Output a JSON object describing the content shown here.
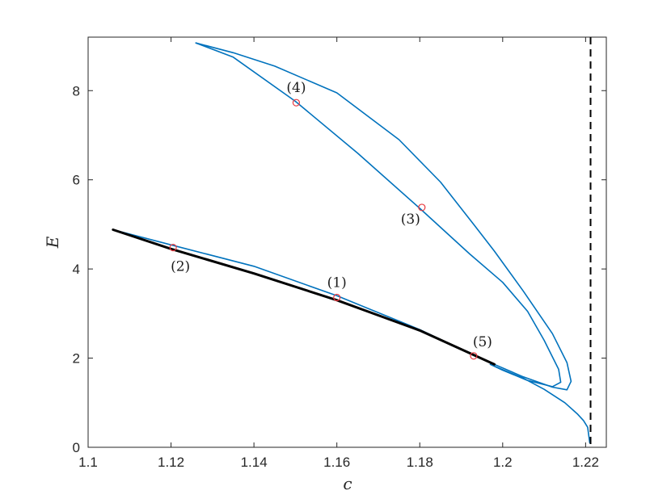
{
  "chart_data": {
    "type": "line",
    "xlabel": "c",
    "ylabel": "E",
    "xlim": [
      1.1,
      1.225
    ],
    "ylim": [
      0,
      9.2
    ],
    "xticks": [
      1.1,
      1.12,
      1.14,
      1.16,
      1.18,
      1.2,
      1.22
    ],
    "xtick_labels": [
      "1.1",
      "1.12",
      "1.14",
      "1.16",
      "1.18",
      "1.2",
      "1.22"
    ],
    "yticks": [
      0,
      2,
      4,
      6,
      8
    ],
    "ytick_labels": [
      "0",
      "2",
      "4",
      "6",
      "8"
    ],
    "grid": false,
    "colors": {
      "branch": "#0072BD",
      "stable": "#000000",
      "marker": "#e8393f",
      "asymptote": "#000000"
    },
    "series": [
      {
        "style": "blue-thin",
        "x": [
          1.106,
          1.12,
          1.14,
          1.16,
          1.18,
          1.195,
          1.205,
          1.212,
          1.2155,
          1.2165,
          1.2155,
          1.212,
          1.205,
          1.198,
          1.193,
          1.185,
          1.175,
          1.16,
          1.145,
          1.135,
          1.126
        ],
        "y": [
          4.88,
          4.54,
          4.06,
          3.4,
          2.64,
          1.98,
          1.58,
          1.35,
          1.29,
          1.48,
          1.9,
          2.55,
          3.5,
          4.4,
          5.0,
          5.95,
          6.9,
          7.95,
          8.55,
          8.85,
          9.07
        ]
      },
      {
        "style": "blue-thin",
        "x": [
          1.126,
          1.135,
          1.15,
          1.165,
          1.18,
          1.192,
          1.2,
          1.206,
          1.21,
          1.2135,
          1.214,
          1.212,
          1.206,
          1.2,
          1.197,
          1.2,
          1.205,
          1.21,
          1.215,
          1.218,
          1.2195,
          1.2205,
          1.221
        ],
        "y": [
          9.07,
          8.75,
          7.76,
          6.6,
          5.36,
          4.34,
          3.7,
          3.05,
          2.4,
          1.75,
          1.46,
          1.36,
          1.5,
          1.73,
          1.86,
          1.74,
          1.55,
          1.3,
          1.0,
          0.75,
          0.6,
          0.45,
          0.1
        ]
      },
      {
        "style": "black-thick",
        "x": [
          1.106,
          1.12,
          1.14,
          1.16,
          1.18,
          1.198
        ],
        "y": [
          4.88,
          4.45,
          3.9,
          3.3,
          2.62,
          1.86
        ]
      }
    ],
    "asymptote_x": 1.2212,
    "markers": [
      {
        "label": "(1)",
        "x": 1.16,
        "y": 3.36,
        "pos": "above"
      },
      {
        "label": "(2)",
        "x": 1.1205,
        "y": 4.48,
        "pos": "below"
      },
      {
        "label": "(3)",
        "x": 1.1805,
        "y": 5.38,
        "pos": "left-below"
      },
      {
        "label": "(4)",
        "x": 1.1502,
        "y": 7.73,
        "pos": "above"
      },
      {
        "label": "(5)",
        "x": 1.193,
        "y": 2.05,
        "pos": "above-right"
      }
    ]
  }
}
